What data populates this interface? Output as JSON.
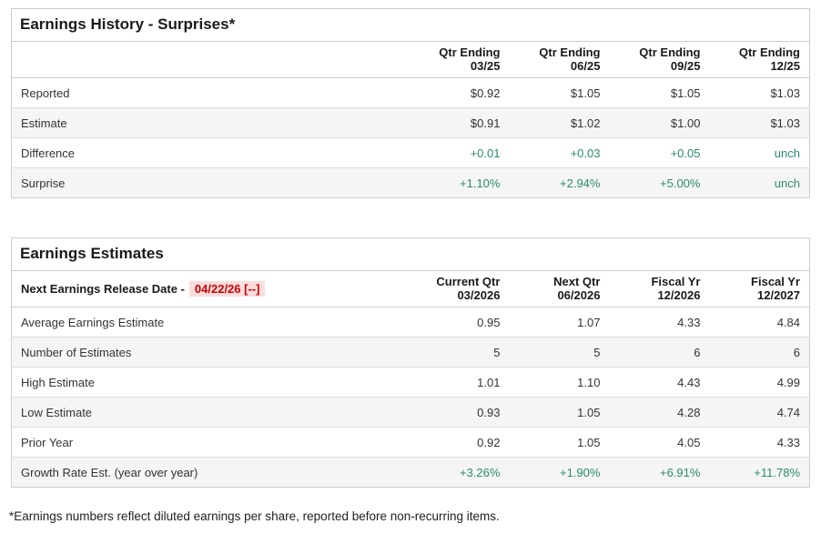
{
  "colors": {
    "positive": "#2b8a72",
    "alert_text": "#cc0000",
    "alert_bg": "#fbdddd",
    "stripe": "#f5f5f5",
    "border": "#cccccc",
    "row_border": "#dddddd",
    "text": "#333333"
  },
  "history_table": {
    "title": "Earnings History - Surprises*",
    "columns": [
      [
        "Qtr Ending",
        "03/25"
      ],
      [
        "Qtr Ending",
        "06/25"
      ],
      [
        "Qtr Ending",
        "09/25"
      ],
      [
        "Qtr Ending",
        "12/25"
      ]
    ],
    "rows": [
      {
        "label": "Reported",
        "values": [
          "$0.92",
          "$1.05",
          "$1.05",
          "$1.03"
        ],
        "positive": false
      },
      {
        "label": "Estimate",
        "values": [
          "$0.91",
          "$1.02",
          "$1.00",
          "$1.03"
        ],
        "positive": false
      },
      {
        "label": "Difference",
        "values": [
          "+0.01",
          "+0.03",
          "+0.05",
          "unch"
        ],
        "positive": true
      },
      {
        "label": "Surprise",
        "values": [
          "+1.10%",
          "+2.94%",
          "+5.00%",
          "unch"
        ],
        "positive": true
      }
    ]
  },
  "estimates_table": {
    "title": "Earnings Estimates",
    "release_date_label": "Next Earnings Release Date -",
    "release_date_value": "04/22/26 [--]",
    "columns": [
      [
        "Current Qtr",
        "03/2026"
      ],
      [
        "Next Qtr",
        "06/2026"
      ],
      [
        "Fiscal Yr",
        "12/2026"
      ],
      [
        "Fiscal Yr",
        "12/2027"
      ]
    ],
    "rows": [
      {
        "label": "Average Earnings Estimate",
        "values": [
          "0.95",
          "1.07",
          "4.33",
          "4.84"
        ],
        "positive": false
      },
      {
        "label": "Number of Estimates",
        "values": [
          "5",
          "5",
          "6",
          "6"
        ],
        "positive": false
      },
      {
        "label": "High Estimate",
        "values": [
          "1.01",
          "1.10",
          "4.43",
          "4.99"
        ],
        "positive": false
      },
      {
        "label": "Low Estimate",
        "values": [
          "0.93",
          "1.05",
          "4.28",
          "4.74"
        ],
        "positive": false
      },
      {
        "label": "Prior Year",
        "values": [
          "0.92",
          "1.05",
          "4.05",
          "4.33"
        ],
        "positive": false
      },
      {
        "label": "Growth Rate Est. (year over year)",
        "values": [
          "+3.26%",
          "+1.90%",
          "+6.91%",
          "+11.78%"
        ],
        "positive": true
      }
    ]
  },
  "footnote": "*Earnings numbers reflect diluted earnings per share, reported before non-recurring items."
}
